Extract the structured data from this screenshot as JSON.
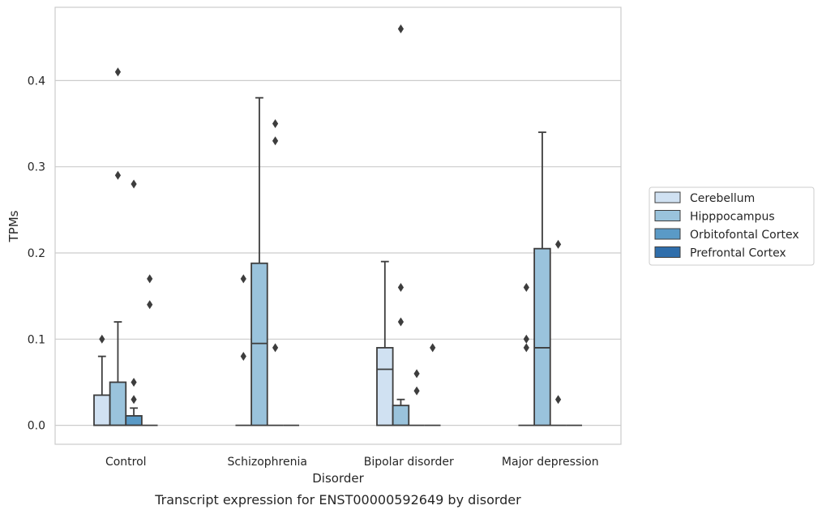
{
  "chart_data": {
    "type": "boxplot",
    "title": "",
    "caption": "Transcript expression for ENST00000592649 by disorder",
    "xlabel": "Disorder",
    "ylabel": "TPMs",
    "ylim": [
      -0.022,
      0.485
    ],
    "yticks": [
      0.0,
      0.1,
      0.2,
      0.3,
      0.4
    ],
    "ytick_labels": [
      "0.0",
      "0.1",
      "0.2",
      "0.3",
      "0.4"
    ],
    "grid": "horizontal",
    "legend_position": "right",
    "categories": [
      "Control",
      "Schizophrenia",
      "Bipolar disorder",
      "Major depression"
    ],
    "series": [
      {
        "name": "Cerebellum",
        "color": "#d0e1f2",
        "boxes": [
          {
            "q1": 0.0,
            "median": 0.0,
            "q3": 0.035,
            "whisker_low": 0.0,
            "whisker_high": 0.08,
            "outliers": [
              0.1
            ]
          },
          {
            "q1": 0.0,
            "median": 0.0,
            "q3": 0.0,
            "whisker_low": 0.0,
            "whisker_high": 0.0,
            "outliers": [
              0.08,
              0.17
            ]
          },
          {
            "q1": 0.0,
            "median": 0.065,
            "q3": 0.09,
            "whisker_low": 0.0,
            "whisker_high": 0.19,
            "outliers": []
          },
          {
            "q1": 0.0,
            "median": 0.0,
            "q3": 0.0,
            "whisker_low": 0.0,
            "whisker_high": 0.0,
            "outliers": [
              0.09,
              0.1,
              0.16
            ]
          }
        ]
      },
      {
        "name": "Hipppocampus",
        "color": "#9ac3dc",
        "boxes": [
          {
            "q1": 0.0,
            "median": 0.0,
            "q3": 0.05,
            "whisker_low": 0.0,
            "whisker_high": 0.12,
            "outliers": [
              0.29,
              0.41
            ]
          },
          {
            "q1": 0.0,
            "median": 0.095,
            "q3": 0.188,
            "whisker_low": 0.0,
            "whisker_high": 0.38,
            "outliers": []
          },
          {
            "q1": 0.0,
            "median": 0.0,
            "q3": 0.023,
            "whisker_low": 0.0,
            "whisker_high": 0.03,
            "outliers": [
              0.12,
              0.16,
              0.46
            ]
          },
          {
            "q1": 0.0,
            "median": 0.09,
            "q3": 0.205,
            "whisker_low": 0.0,
            "whisker_high": 0.34,
            "outliers": []
          }
        ]
      },
      {
        "name": "Orbitofontal Cortex",
        "color": "#5a9ac6",
        "boxes": [
          {
            "q1": 0.0,
            "median": 0.0,
            "q3": 0.011,
            "whisker_low": 0.0,
            "whisker_high": 0.02,
            "outliers": [
              0.03,
              0.05,
              0.28
            ]
          },
          {
            "q1": 0.0,
            "median": 0.0,
            "q3": 0.0,
            "whisker_low": 0.0,
            "whisker_high": 0.0,
            "outliers": [
              0.09,
              0.33,
              0.35
            ]
          },
          {
            "q1": 0.0,
            "median": 0.0,
            "q3": 0.0,
            "whisker_low": 0.0,
            "whisker_high": 0.0,
            "outliers": [
              0.04,
              0.06
            ]
          },
          {
            "q1": 0.0,
            "median": 0.0,
            "q3": 0.0,
            "whisker_low": 0.0,
            "whisker_high": 0.0,
            "outliers": [
              0.03,
              0.21
            ]
          }
        ]
      },
      {
        "name": "Prefrontal Cortex",
        "color": "#2f6eab",
        "boxes": [
          {
            "q1": 0.0,
            "median": 0.0,
            "q3": 0.0,
            "whisker_low": 0.0,
            "whisker_high": 0.0,
            "outliers": [
              0.14,
              0.17
            ]
          },
          {
            "q1": 0.0,
            "median": 0.0,
            "q3": 0.0,
            "whisker_low": 0.0,
            "whisker_high": 0.0,
            "outliers": []
          },
          {
            "q1": 0.0,
            "median": 0.0,
            "q3": 0.0,
            "whisker_low": 0.0,
            "whisker_high": 0.0,
            "outliers": [
              0.09
            ]
          },
          {
            "q1": 0.0,
            "median": 0.0,
            "q3": 0.0,
            "whisker_low": 0.0,
            "whisker_high": 0.0,
            "outliers": []
          }
        ]
      }
    ]
  }
}
